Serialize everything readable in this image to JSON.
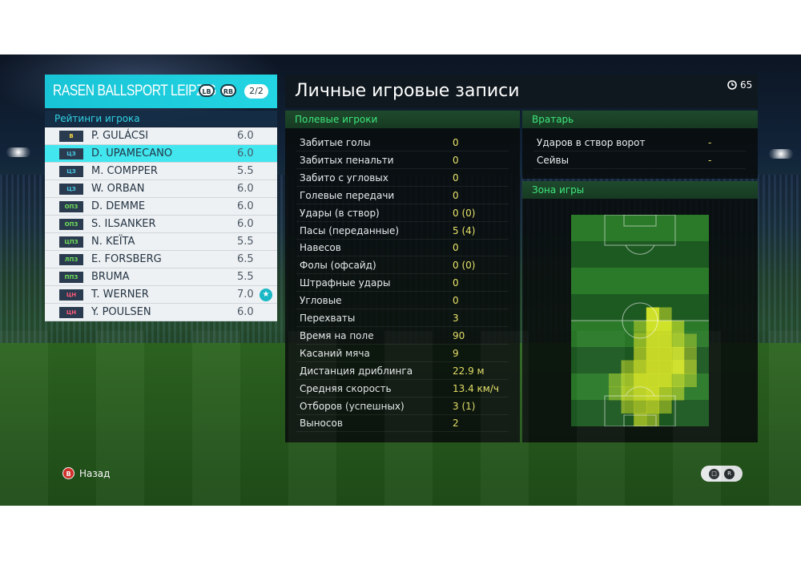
{
  "team": {
    "name": "RASEN BALLSPORT LEIPZIG",
    "lb_label": "LB",
    "rb_label": "RB",
    "page": "2/2"
  },
  "ratings_title": "Рейтинги игрока",
  "players": [
    {
      "pos": "В",
      "name": "P. GULÁCSI",
      "rating": "6.0",
      "pos_group": "gk"
    },
    {
      "pos": "ЦЗ",
      "name": "D. UPAMECANO",
      "rating": "6.0",
      "pos_group": "cb",
      "selected": true
    },
    {
      "pos": "ЦЗ",
      "name": "M. COMPPER",
      "rating": "5.5",
      "pos_group": "cb"
    },
    {
      "pos": "ЦЗ",
      "name": "W. ORBAN",
      "rating": "6.0",
      "pos_group": "cb"
    },
    {
      "pos": "ОПЗ",
      "name": "D. DEMME",
      "rating": "6.0",
      "pos_group": "mf"
    },
    {
      "pos": "ОПЗ",
      "name": "S. ILSANKER",
      "rating": "6.0",
      "pos_group": "mf"
    },
    {
      "pos": "ЦПЗ",
      "name": "N. KEÏTA",
      "rating": "5.5",
      "pos_group": "mf"
    },
    {
      "pos": "ЛПЗ",
      "name": "E. FORSBERG",
      "rating": "6.5",
      "pos_group": "mf"
    },
    {
      "pos": "ППЗ",
      "name": "BRUMA",
      "rating": "5.5",
      "pos_group": "mf"
    },
    {
      "pos": "ЦН",
      "name": "T. WERNER",
      "rating": "7.0",
      "pos_group": "fw",
      "star": true
    },
    {
      "pos": "ЦН",
      "name": "Y. POULSEN",
      "rating": "6.0",
      "pos_group": "fw"
    }
  ],
  "main": {
    "title": "Личные игровые записи",
    "timer": "65",
    "field_title": "Полевые игроки",
    "field_stats": [
      {
        "label": "Забитые голы",
        "value": "0"
      },
      {
        "label": "Забитых пенальти",
        "value": "0"
      },
      {
        "label": "Забито с угловых",
        "value": "0"
      },
      {
        "label": "Голевые передачи",
        "value": "0"
      },
      {
        "label": "Удары (в створ)",
        "value": "0 (0)"
      },
      {
        "label": "Пасы (переданные)",
        "value": "5 (4)"
      },
      {
        "label": "Навесов",
        "value": "0"
      },
      {
        "label": "Фолы (офсайд)",
        "value": "0 (0)"
      },
      {
        "label": "Штрафные удары",
        "value": "0"
      },
      {
        "label": "Угловые",
        "value": "0"
      },
      {
        "label": "Перехваты",
        "value": "3"
      },
      {
        "label": "Время на поле",
        "value": "90"
      },
      {
        "label": "Касаний мяча",
        "value": "9"
      },
      {
        "label": "Дистанция дриблинга",
        "value": "22.9 м"
      },
      {
        "label": "Средняя скорость",
        "value": "13.4 км/ч"
      },
      {
        "label": "Отборов (успешных)",
        "value": "3 (1)"
      },
      {
        "label": "Выносов",
        "value": "2"
      }
    ],
    "gk_title": "Вратарь",
    "gk_stats": [
      {
        "label": "Ударов в створ ворот",
        "value": "-"
      },
      {
        "label": "Сейвы",
        "value": "-"
      }
    ],
    "zone_title": "Зона игры"
  },
  "heatmap": {
    "cols": 11,
    "rows": 16,
    "intensity": [
      [
        0,
        0,
        0,
        0,
        0,
        0,
        0,
        0,
        0,
        0,
        0
      ],
      [
        0,
        0,
        0,
        0,
        0,
        0,
        0,
        0,
        0,
        0,
        0
      ],
      [
        0,
        0,
        0,
        0,
        0,
        0,
        0,
        0,
        0,
        0,
        0
      ],
      [
        0,
        0,
        0,
        0,
        0,
        0,
        0,
        0,
        0,
        0,
        0
      ],
      [
        0,
        0,
        0,
        0,
        0,
        0,
        0,
        0,
        0,
        0,
        0
      ],
      [
        0,
        0,
        0,
        0,
        0,
        0,
        0,
        0,
        0,
        0,
        0
      ],
      [
        0,
        0,
        0,
        0,
        0,
        0,
        0,
        0,
        0,
        0,
        0
      ],
      [
        0,
        0,
        0,
        0,
        0,
        0,
        1,
        0.4,
        0,
        0,
        0
      ],
      [
        0,
        0,
        0,
        0,
        0,
        0.3,
        1,
        1,
        0.5,
        0,
        0
      ],
      [
        0,
        0,
        0,
        0,
        0,
        0.5,
        1,
        1,
        0.6,
        0.2,
        0
      ],
      [
        0,
        0,
        0,
        0,
        0,
        0.6,
        1,
        1,
        0.9,
        0.3,
        0
      ],
      [
        0,
        0,
        0,
        0,
        0.4,
        0.8,
        1,
        1,
        1,
        0.5,
        0
      ],
      [
        0,
        0,
        0,
        0.2,
        0.6,
        1,
        1,
        1,
        0.6,
        0.3,
        0
      ],
      [
        0,
        0,
        0,
        0.2,
        0.7,
        0.9,
        1,
        0.7,
        0.4,
        0,
        0
      ],
      [
        0,
        0,
        0,
        0,
        0.4,
        0.6,
        0.7,
        0.4,
        0,
        0,
        0
      ],
      [
        0,
        0,
        0,
        0,
        0,
        0.6,
        0.4,
        0,
        0,
        0,
        0
      ]
    ],
    "colors": {
      "pitch_dark": "#1d5a22",
      "pitch_light": "#2b7a2a",
      "heat": "#d8e82a"
    }
  },
  "controls": {
    "back_button": "B",
    "back_label": "Назад"
  }
}
